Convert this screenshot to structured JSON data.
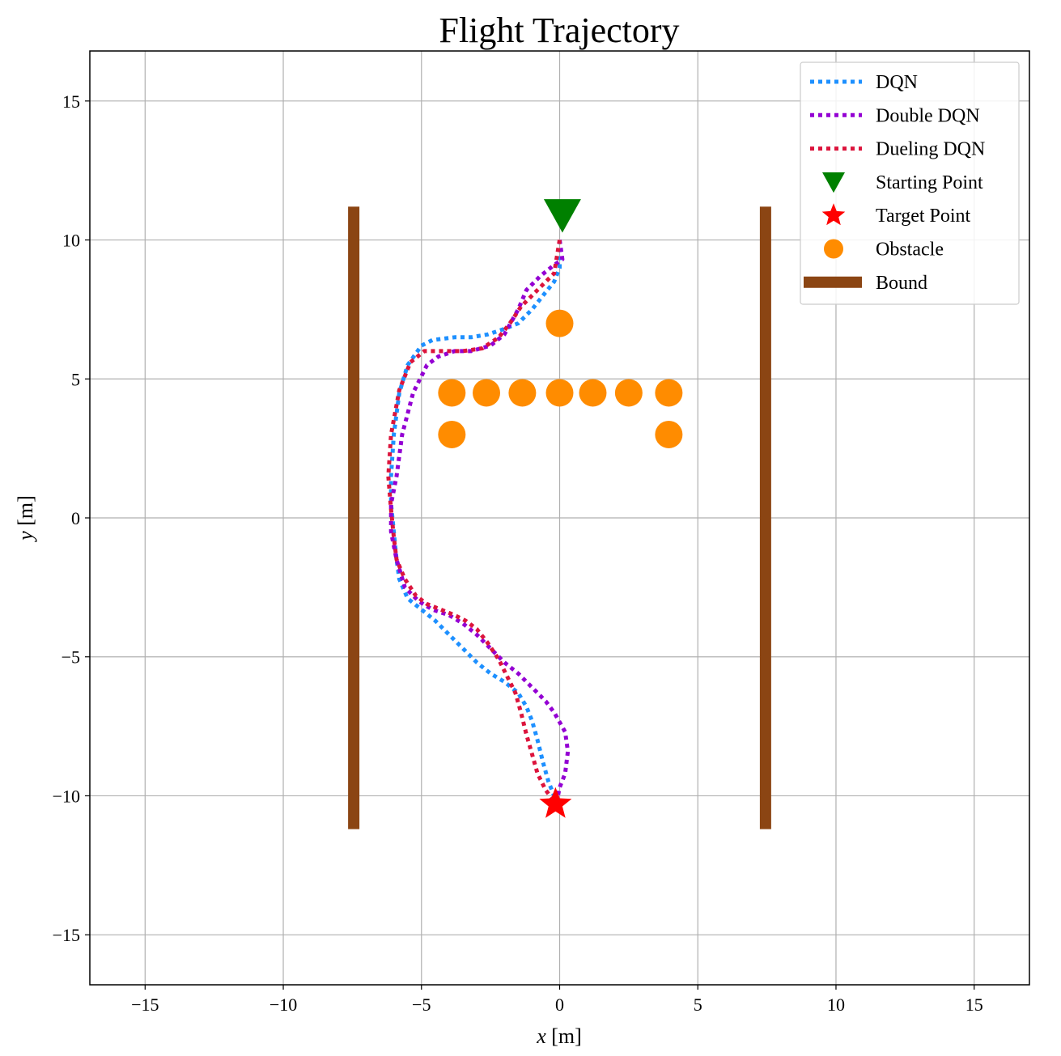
{
  "chart_data": {
    "type": "line",
    "title": "Flight Trajectory",
    "xlabel": "x [m]",
    "ylabel": "y [m]",
    "xlim": [
      -17,
      17
    ],
    "ylim": [
      -16.8,
      16.8
    ],
    "xticks": [
      -15,
      -10,
      -5,
      0,
      5,
      10,
      15
    ],
    "yticks": [
      -15,
      -10,
      -5,
      0,
      5,
      10,
      15
    ],
    "xtick_labels": [
      "−15",
      "−10",
      "−5",
      "0",
      "5",
      "10",
      "15"
    ],
    "ytick_labels": [
      "−15",
      "−10",
      "−5",
      "0",
      "5",
      "10",
      "15"
    ],
    "grid": true,
    "legend_position": "top-right",
    "series": [
      {
        "name": "DQN",
        "color": "#1e90ff",
        "style": "dotted",
        "x": [
          0.0,
          0.0,
          -0.2,
          -0.6,
          -1.0,
          -1.5,
          -2.0,
          -2.6,
          -3.2,
          -3.8,
          -4.6,
          -5.0,
          -5.5,
          -5.8,
          -6.0,
          -6.1,
          -6.1,
          -6.0,
          -5.9,
          -5.8,
          -5.5,
          -5.0,
          -4.5,
          -4.0,
          -3.5,
          -3.0,
          -2.5,
          -2.0,
          -1.5,
          -1.2,
          -1.0,
          -0.8,
          -0.6,
          -0.4,
          -0.2
        ],
        "y": [
          10.0,
          9.0,
          8.5,
          8.0,
          7.5,
          7.0,
          6.8,
          6.6,
          6.5,
          6.5,
          6.4,
          6.2,
          5.5,
          4.5,
          3.0,
          1.5,
          0.5,
          -0.5,
          -1.5,
          -2.2,
          -2.9,
          -3.3,
          -3.7,
          -4.2,
          -4.7,
          -5.2,
          -5.6,
          -5.9,
          -6.3,
          -6.8,
          -7.3,
          -8.0,
          -8.8,
          -9.5,
          -10.0
        ]
      },
      {
        "name": "Double DQN",
        "color": "#9400d3",
        "style": "dotted",
        "x": [
          0.0,
          0.1,
          -0.2,
          -0.7,
          -1.2,
          -1.5,
          -2.0,
          -2.5,
          -3.2,
          -3.8,
          -4.4,
          -4.8,
          -5.3,
          -5.7,
          -5.9,
          -6.1,
          -6.1,
          -5.9,
          -5.6,
          -5.1,
          -4.6,
          -4.0,
          -3.5,
          -3.0,
          -2.5,
          -2.0,
          -1.5,
          -1.0,
          -0.5,
          -0.2,
          0.2,
          0.3,
          0.2,
          0.0,
          -0.1
        ],
        "y": [
          10.0,
          9.3,
          9.1,
          8.7,
          8.2,
          7.5,
          6.6,
          6.2,
          6.0,
          6.0,
          5.8,
          5.5,
          4.5,
          3.0,
          1.5,
          0.5,
          -0.5,
          -1.5,
          -2.5,
          -3.0,
          -3.3,
          -3.5,
          -3.8,
          -4.2,
          -4.7,
          -5.2,
          -5.6,
          -6.1,
          -6.6,
          -7.0,
          -7.7,
          -8.4,
          -9.2,
          -9.7,
          -10.2
        ]
      },
      {
        "name": "Dueling DQN",
        "color": "#dc143c",
        "style": "dotted",
        "x": [
          0.0,
          -0.2,
          -0.6,
          -1.0,
          -1.4,
          -1.8,
          -2.2,
          -2.8,
          -3.5,
          -4.2,
          -4.9,
          -5.4,
          -5.8,
          -6.1,
          -6.2,
          -6.1,
          -6.0,
          -5.9,
          -5.6,
          -5.2,
          -4.8,
          -4.3,
          -3.8,
          -3.4,
          -3.0,
          -2.6,
          -2.2,
          -1.9,
          -1.6,
          -1.4,
          -1.2,
          -1.0,
          -0.8,
          -0.5,
          -0.2
        ],
        "y": [
          10.0,
          8.8,
          8.4,
          8.0,
          7.6,
          7.0,
          6.5,
          6.1,
          6.0,
          6.0,
          6.0,
          5.6,
          4.6,
          3.0,
          1.5,
          0.3,
          -0.7,
          -1.5,
          -2.2,
          -2.8,
          -3.1,
          -3.3,
          -3.5,
          -3.7,
          -4.0,
          -4.5,
          -5.1,
          -5.7,
          -6.3,
          -7.0,
          -7.8,
          -8.5,
          -9.2,
          -9.8,
          -10.2
        ]
      }
    ],
    "starting_point": {
      "name": "Starting Point",
      "x": 0.1,
      "y": 10.9,
      "color": "#008000",
      "marker": "triangle-down"
    },
    "target_point": {
      "name": "Target Point",
      "x": -0.15,
      "y": -10.3,
      "color": "#ff0000",
      "marker": "star"
    },
    "obstacles": {
      "name": "Obstacle",
      "color": "#ff8c00",
      "marker": "circle",
      "points": [
        {
          "x": 0.0,
          "y": 7.0
        },
        {
          "x": -3.9,
          "y": 4.5
        },
        {
          "x": -2.65,
          "y": 4.5
        },
        {
          "x": -1.35,
          "y": 4.5
        },
        {
          "x": 0.0,
          "y": 4.5
        },
        {
          "x": 1.2,
          "y": 4.5
        },
        {
          "x": 2.5,
          "y": 4.5
        },
        {
          "x": 3.95,
          "y": 4.5
        },
        {
          "x": -3.9,
          "y": 3.0
        },
        {
          "x": 3.95,
          "y": 3.0
        }
      ]
    },
    "bounds": {
      "name": "Bound",
      "color": "#8b4513",
      "lines": [
        {
          "x": -7.45,
          "y": [
            -11.2,
            11.2
          ]
        },
        {
          "x": 7.45,
          "y": [
            -11.2,
            11.2
          ]
        }
      ]
    }
  }
}
